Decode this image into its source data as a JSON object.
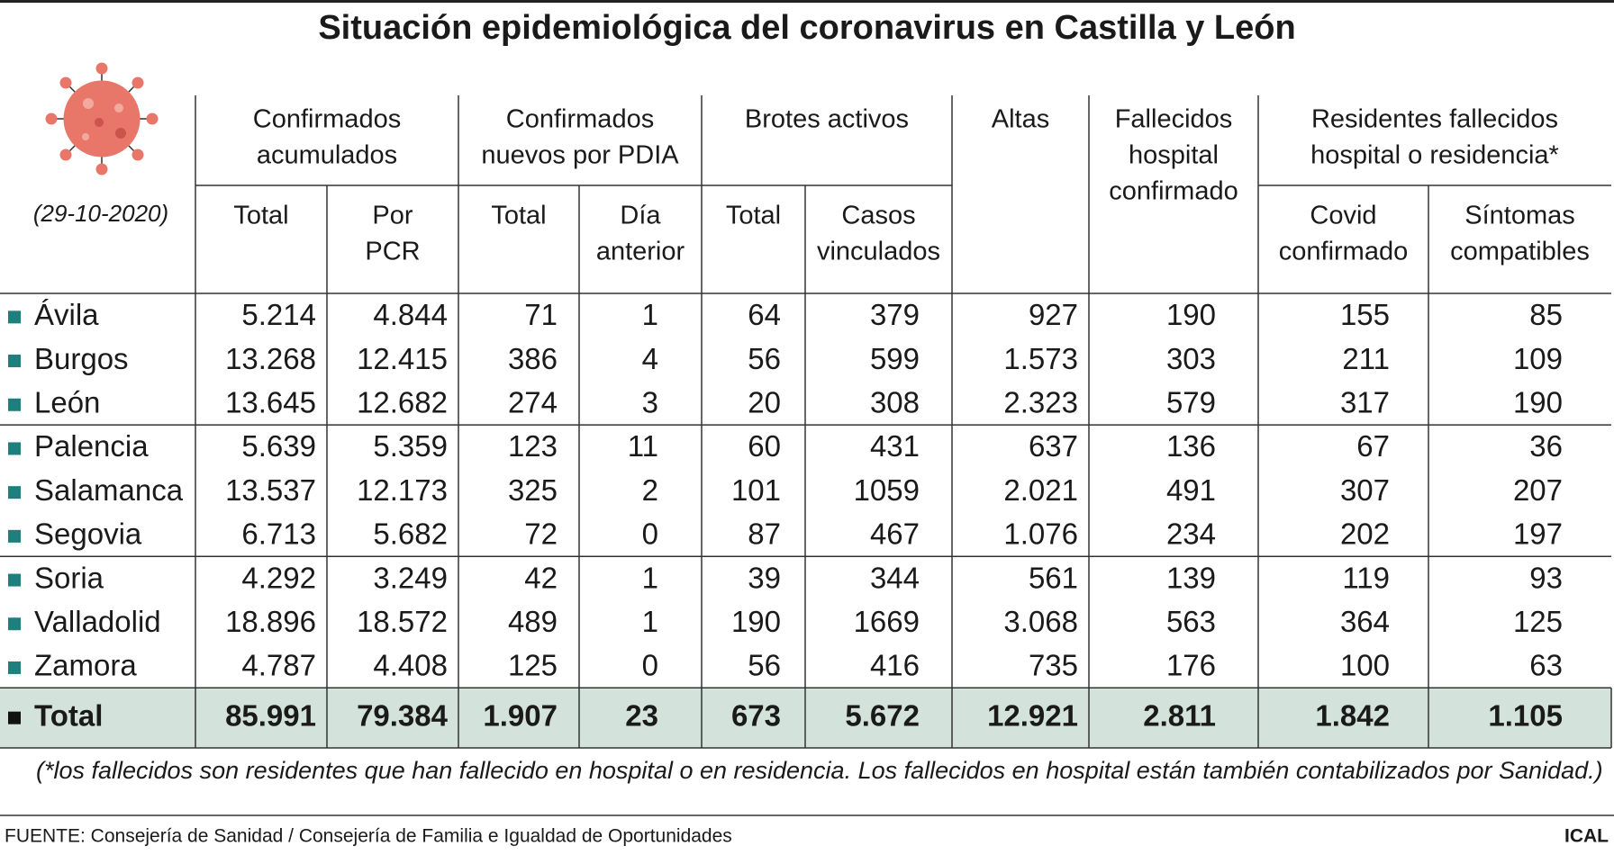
{
  "title": "Situación epidemiológica del coronavirus en Castilla y León",
  "date": "(29-10-2020)",
  "header": {
    "groups": [
      {
        "lines": [
          "Confirmados",
          "acumulados"
        ],
        "subs": [
          {
            "lines": [
              "Total"
            ]
          },
          {
            "lines": [
              "Por",
              "PCR"
            ]
          }
        ]
      },
      {
        "lines": [
          "Confirmados",
          "nuevos por PDIA"
        ],
        "subs": [
          {
            "lines": [
              "Total"
            ]
          },
          {
            "lines": [
              "Día",
              "anterior"
            ]
          }
        ]
      },
      {
        "lines": [
          "Brotes activos"
        ],
        "subs": [
          {
            "lines": [
              "Total"
            ]
          },
          {
            "lines": [
              "Casos",
              "vinculados"
            ]
          }
        ]
      },
      {
        "lines": [
          "Altas"
        ]
      },
      {
        "lines": [
          "Fallecidos",
          "hospital",
          "confirmado"
        ]
      },
      {
        "lines": [
          "Residentes fallecidos",
          "hospital o residencia*"
        ],
        "subs": [
          {
            "lines": [
              "Covid",
              "confirmado"
            ]
          },
          {
            "lines": [
              "Síntomas",
              "compatibles"
            ]
          }
        ]
      }
    ]
  },
  "table": {
    "rows": [
      [
        "Ávila",
        "5.214",
        "4.844",
        "71",
        "1",
        "64",
        "379",
        "927",
        "190",
        "155",
        "85"
      ],
      [
        "Burgos",
        "13.268",
        "12.415",
        "386",
        "4",
        "56",
        "599",
        "1.573",
        "303",
        "211",
        "109"
      ],
      [
        "León",
        "13.645",
        "12.682",
        "274",
        "3",
        "20",
        "308",
        "2.323",
        "579",
        "317",
        "190"
      ],
      [
        "Palencia",
        "5.639",
        "5.359",
        "123",
        "11",
        "60",
        "431",
        "637",
        "136",
        "67",
        "36"
      ],
      [
        "Salamanca",
        "13.537",
        "12.173",
        "325",
        "2",
        "101",
        "1059",
        "2.021",
        "491",
        "307",
        "207"
      ],
      [
        "Segovia",
        "6.713",
        "5.682",
        "72",
        "0",
        "87",
        "467",
        "1.076",
        "234",
        "202",
        "197"
      ],
      [
        "Soria",
        "4.292",
        "3.249",
        "42",
        "1",
        "39",
        "344",
        "561",
        "139",
        "119",
        "93"
      ],
      [
        "Valladolid",
        "18.896",
        "18.572",
        "489",
        "1",
        "190",
        "1669",
        "3.068",
        "563",
        "364",
        "125"
      ],
      [
        "Zamora",
        "4.787",
        "4.408",
        "125",
        "0",
        "56",
        "416",
        "735",
        "176",
        "100",
        "63"
      ]
    ],
    "total": [
      "Total",
      "85.991",
      "79.384",
      "1.907",
      "23",
      "673",
      "5.672",
      "12.921",
      "2.811",
      "1.842",
      "1.105"
    ]
  },
  "footnote": "(*los fallecidos son residentes que han fallecido en hospital o en residencia. Los fallecidos en hospital están también contabilizados por Sanidad.)",
  "source": "FUENTE: Consejería de Sanidad / Consejería de Familia e Igualdad de Oportunidades",
  "credit": "ICAL"
}
